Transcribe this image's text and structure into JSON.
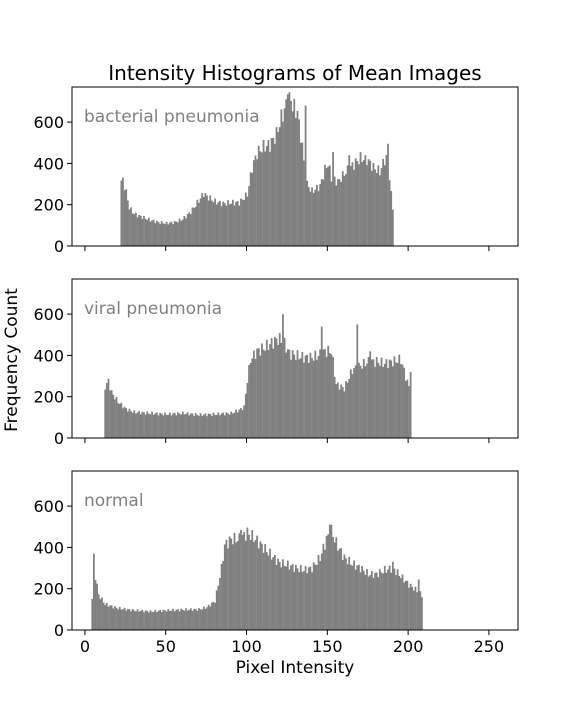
{
  "chart_data": {
    "type": "bar",
    "title": "Intensity Histograms of Mean Images",
    "xlabel": "Pixel Intensity",
    "ylabel": "Frequency Count",
    "xlim": [
      -8,
      268
    ],
    "ylim": [
      0,
      770
    ],
    "x_ticks": [
      0,
      50,
      100,
      150,
      200,
      250
    ],
    "y_ticks": [
      0,
      200,
      400,
      600
    ],
    "bar_color": "#808080",
    "sharex": true,
    "grid": false,
    "panels": [
      {
        "label": "bacterial pneumonia",
        "anchors": [
          [
            0,
            0
          ],
          [
            21,
            0
          ],
          [
            22,
            310
          ],
          [
            23,
            320
          ],
          [
            25,
            260
          ],
          [
            27,
            185
          ],
          [
            30,
            155
          ],
          [
            35,
            140
          ],
          [
            40,
            125
          ],
          [
            45,
            115
          ],
          [
            50,
            110
          ],
          [
            55,
            115
          ],
          [
            60,
            130
          ],
          [
            65,
            165
          ],
          [
            70,
            220
          ],
          [
            73,
            255
          ],
          [
            75,
            240
          ],
          [
            80,
            215
          ],
          [
            85,
            205
          ],
          [
            90,
            210
          ],
          [
            95,
            210
          ],
          [
            100,
            250
          ],
          [
            103,
            380
          ],
          [
            106,
            450
          ],
          [
            110,
            480
          ],
          [
            114,
            490
          ],
          [
            118,
            540
          ],
          [
            121,
            620
          ],
          [
            124,
            680
          ],
          [
            126,
            710
          ],
          [
            128,
            690
          ],
          [
            131,
            620
          ],
          [
            134,
            490
          ],
          [
            136,
            310
          ],
          [
            140,
            265
          ],
          [
            145,
            290
          ],
          [
            148,
            370
          ],
          [
            150,
            400
          ],
          [
            152,
            330
          ],
          [
            156,
            310
          ],
          [
            160,
            350
          ],
          [
            165,
            390
          ],
          [
            170,
            425
          ],
          [
            174,
            420
          ],
          [
            178,
            380
          ],
          [
            182,
            360
          ],
          [
            185,
            420
          ],
          [
            187,
            430
          ],
          [
            189,
            250
          ],
          [
            190,
            180
          ],
          [
            191,
            0
          ],
          [
            260,
            0
          ]
        ],
        "spikes": [
          [
            125,
            735
          ],
          [
            131,
            655
          ],
          [
            136,
            680
          ],
          [
            153,
            455
          ],
          [
            163,
            440
          ],
          [
            173,
            440
          ],
          [
            187,
            495
          ]
        ]
      },
      {
        "label": "viral pneumonia",
        "anchors": [
          [
            0,
            0
          ],
          [
            11,
            0
          ],
          [
            12,
            250
          ],
          [
            14,
            275
          ],
          [
            16,
            220
          ],
          [
            20,
            175
          ],
          [
            25,
            140
          ],
          [
            30,
            125
          ],
          [
            40,
            120
          ],
          [
            50,
            115
          ],
          [
            60,
            120
          ],
          [
            70,
            112
          ],
          [
            80,
            115
          ],
          [
            90,
            120
          ],
          [
            95,
            135
          ],
          [
            98,
            150
          ],
          [
            100,
            280
          ],
          [
            102,
            380
          ],
          [
            106,
            420
          ],
          [
            110,
            435
          ],
          [
            115,
            460
          ],
          [
            119,
            480
          ],
          [
            122,
            470
          ],
          [
            126,
            410
          ],
          [
            130,
            400
          ],
          [
            135,
            390
          ],
          [
            140,
            390
          ],
          [
            144,
            400
          ],
          [
            148,
            420
          ],
          [
            152,
            420
          ],
          [
            155,
            260
          ],
          [
            160,
            240
          ],
          [
            165,
            330
          ],
          [
            170,
            350
          ],
          [
            175,
            370
          ],
          [
            180,
            370
          ],
          [
            185,
            360
          ],
          [
            190,
            370
          ],
          [
            195,
            380
          ],
          [
            199,
            270
          ],
          [
            201,
            230
          ],
          [
            202,
            0
          ],
          [
            260,
            0
          ]
        ],
        "spikes": [
          [
            122,
            600
          ],
          [
            146,
            540
          ],
          [
            168,
            550
          ],
          [
            176,
            420
          ],
          [
            201,
            320
          ]
        ]
      },
      {
        "label": "normal",
        "anchors": [
          [
            0,
            0
          ],
          [
            3,
            0
          ],
          [
            4,
            150
          ],
          [
            5,
            365
          ],
          [
            6,
            260
          ],
          [
            8,
            170
          ],
          [
            12,
            125
          ],
          [
            20,
            105
          ],
          [
            30,
            95
          ],
          [
            40,
            90
          ],
          [
            50,
            95
          ],
          [
            60,
            98
          ],
          [
            70,
            100
          ],
          [
            75,
            110
          ],
          [
            80,
            140
          ],
          [
            82,
            220
          ],
          [
            84,
            300
          ],
          [
            86,
            410
          ],
          [
            90,
            440
          ],
          [
            95,
            440
          ],
          [
            100,
            470
          ],
          [
            105,
            440
          ],
          [
            110,
            400
          ],
          [
            115,
            360
          ],
          [
            120,
            325
          ],
          [
            125,
            315
          ],
          [
            130,
            300
          ],
          [
            135,
            290
          ],
          [
            140,
            300
          ],
          [
            145,
            350
          ],
          [
            149,
            440
          ],
          [
            152,
            480
          ],
          [
            155,
            420
          ],
          [
            160,
            350
          ],
          [
            165,
            320
          ],
          [
            170,
            300
          ],
          [
            175,
            270
          ],
          [
            180,
            270
          ],
          [
            185,
            290
          ],
          [
            190,
            300
          ],
          [
            195,
            260
          ],
          [
            200,
            220
          ],
          [
            205,
            190
          ],
          [
            208,
            170
          ],
          [
            209,
            0
          ],
          [
            260,
            0
          ]
        ],
        "spikes": [
          [
            5,
            370
          ],
          [
            96,
            485
          ],
          [
            151,
            510
          ],
          [
            190,
            330
          ],
          [
            206,
            245
          ]
        ]
      }
    ]
  }
}
